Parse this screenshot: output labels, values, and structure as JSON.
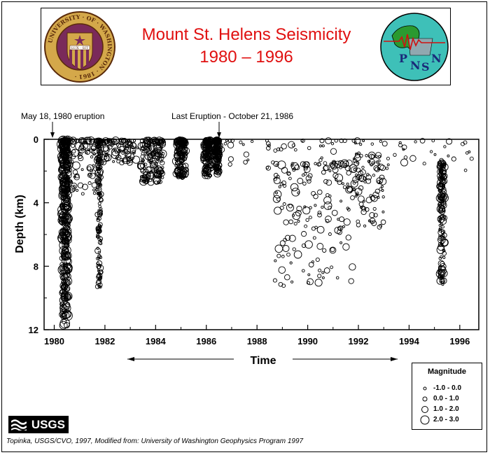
{
  "header": {
    "title_line1": "Mount St. Helens Seismicity",
    "title_line2": "1980 – 1996",
    "uw_seal_text": "UNIVERSITY · OF · WASHINGTON · 1861 ·",
    "uw_motto": "LUX · SIT",
    "pnsn_letters": [
      "P",
      "N",
      "S",
      "N"
    ]
  },
  "annotations": {
    "eruption_1980": "May 18, 1980 eruption",
    "last_eruption": "Last Eruption - October 21, 1986"
  },
  "chart_data": {
    "type": "scatter",
    "xlabel": "Time",
    "ylabel": "Depth (km)",
    "xlim": [
      1979.6,
      1996.75
    ],
    "ylim": [
      0,
      12
    ],
    "y_inverted": true,
    "x_ticks": [
      "1980",
      "1982",
      "1984",
      "1986",
      "1988",
      "1990",
      "1992",
      "1994",
      "1996"
    ],
    "y_ticks": [
      "0",
      "4",
      "8",
      "12"
    ],
    "point_style": "open-circle",
    "point_color": "#000000",
    "clusters": [
      {
        "period": [
          1980.3,
          1980.55
        ],
        "depth": [
          0,
          11.8
        ],
        "magnitude": [
          0.0,
          3.0
        ],
        "density": "very high"
      },
      {
        "period": [
          1980.5,
          1981.8
        ],
        "depth": [
          0,
          3.5
        ],
        "magnitude": [
          -1.0,
          2.0
        ],
        "density": "medium"
      },
      {
        "period": [
          1981.7,
          1981.85
        ],
        "depth": [
          0,
          9.5
        ],
        "magnitude": [
          -1.0,
          1.0
        ],
        "density": "high"
      },
      {
        "period": [
          1981.9,
          1983.3
        ],
        "depth": [
          0,
          1.5
        ],
        "magnitude": [
          -1.0,
          2.0
        ],
        "density": "medium"
      },
      {
        "period": [
          1983.4,
          1984.3
        ],
        "depth": [
          0,
          2.8
        ],
        "magnitude": [
          -1.0,
          2.0
        ],
        "density": "high"
      },
      {
        "period": [
          1984.8,
          1985.2
        ],
        "depth": [
          0,
          2.5
        ],
        "magnitude": [
          -1.0,
          2.0
        ],
        "density": "high"
      },
      {
        "period": [
          1985.9,
          1986.2
        ],
        "depth": [
          0,
          2.3
        ],
        "magnitude": [
          -1.0,
          2.0
        ],
        "density": "high"
      },
      {
        "period": [
          1986.35,
          1986.5
        ],
        "depth": [
          0,
          2.2
        ],
        "magnitude": [
          -1.0,
          2.0
        ],
        "density": "high"
      },
      {
        "period": [
          1986.6,
          1996.7
        ],
        "depth": [
          0,
          2.0
        ],
        "magnitude": [
          -1.0,
          1.5
        ],
        "density": "medium"
      },
      {
        "period": [
          1988.7,
          1991.8
        ],
        "depth": [
          1.5,
          9.5
        ],
        "magnitude": [
          -1.0,
          2.0
        ],
        "density": "high"
      },
      {
        "period": [
          1991.8,
          1993.0
        ],
        "depth": [
          1.0,
          6.0
        ],
        "magnitude": [
          -1.0,
          1.5
        ],
        "density": "medium"
      },
      {
        "period": [
          1995.2,
          1995.4
        ],
        "depth": [
          1.5,
          9.2
        ],
        "magnitude": [
          -1.0,
          2.0
        ],
        "density": "high"
      }
    ]
  },
  "legend": {
    "title": "Magnitude",
    "entries": [
      "-1.0 - 0.0",
      "0.0 - 1.0",
      "1.0 - 2.0",
      "2.0 - 3.0"
    ]
  },
  "footer": {
    "usgs_label": "USGS",
    "credit": "Topinka, USGS/CVO, 1997, Modified from: University of Washington Geophysics Program 1997"
  }
}
